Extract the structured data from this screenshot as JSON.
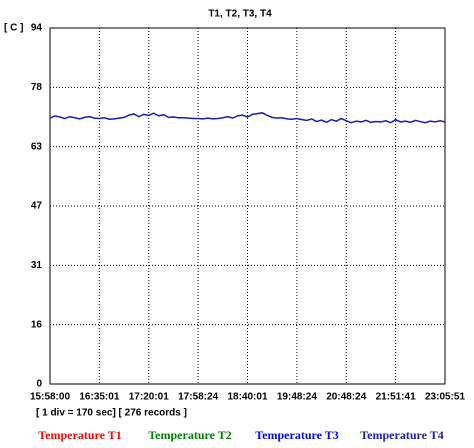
{
  "chart_data": {
    "type": "line",
    "title": "T1, T2, T3, T4",
    "y_label": "[ C ]",
    "note": "[ 1 div = 170 sec] [ 276 records ]",
    "xlim": [
      0,
      80
    ],
    "xticks": [
      {
        "value": 0,
        "label": "15:58:00"
      },
      {
        "value": 10,
        "label": "16:35:01"
      },
      {
        "value": 20,
        "label": "17:20:01"
      },
      {
        "value": 30,
        "label": "17:58:24"
      },
      {
        "value": 40,
        "label": "18:40:01"
      },
      {
        "value": 50,
        "label": "19:48:24"
      },
      {
        "value": 60,
        "label": "20:48:24"
      },
      {
        "value": 70,
        "label": "21:51:41"
      },
      {
        "value": 80,
        "label": "23:05:51"
      }
    ],
    "ylim": [
      0,
      94
    ],
    "yticks": [
      0,
      {
        "value": 15.67,
        "label": "16"
      },
      {
        "value": 31.33,
        "label": "31"
      },
      47,
      {
        "value": 62.67,
        "label": "63"
      },
      {
        "value": 78.33,
        "label": "78"
      },
      94
    ],
    "grid": true,
    "series": [
      {
        "name": "Temperature T1",
        "color": "#ff0000"
      },
      {
        "name": "Temperature T2",
        "color": "#008000"
      },
      {
        "name": "Temperature T3",
        "color": "#0000ff"
      },
      {
        "name": "Temperature T4",
        "color": "#1c1cb0",
        "values": [
          70.2,
          70.8,
          70.5,
          70.1,
          70.6,
          70.3,
          70.0,
          70.4,
          70.6,
          70.2,
          70.1,
          70.3,
          69.9,
          70.0,
          70.2,
          70.4,
          71.0,
          71.3,
          70.6,
          71.2,
          70.9,
          71.5,
          70.8,
          71.1,
          70.4,
          70.5,
          70.3,
          70.3,
          70.2,
          70.1,
          70.1,
          70.0,
          70.2,
          70.0,
          70.1,
          70.3,
          70.6,
          70.2,
          70.8,
          71.0,
          70.5,
          71.2,
          71.4,
          71.6,
          70.9,
          70.4,
          70.2,
          70.3,
          70.0,
          69.9,
          70.1,
          69.8,
          69.6,
          70.0,
          69.3,
          69.7,
          69.1,
          69.8,
          69.4,
          70.1,
          69.5,
          69.0,
          69.4,
          69.2,
          69.6,
          69.1,
          69.3,
          69.2,
          69.5,
          69.0,
          69.8,
          69.2,
          69.4,
          69.1,
          69.6,
          69.3,
          69.0,
          69.4,
          69.2,
          69.5,
          69.2
        ]
      }
    ]
  }
}
